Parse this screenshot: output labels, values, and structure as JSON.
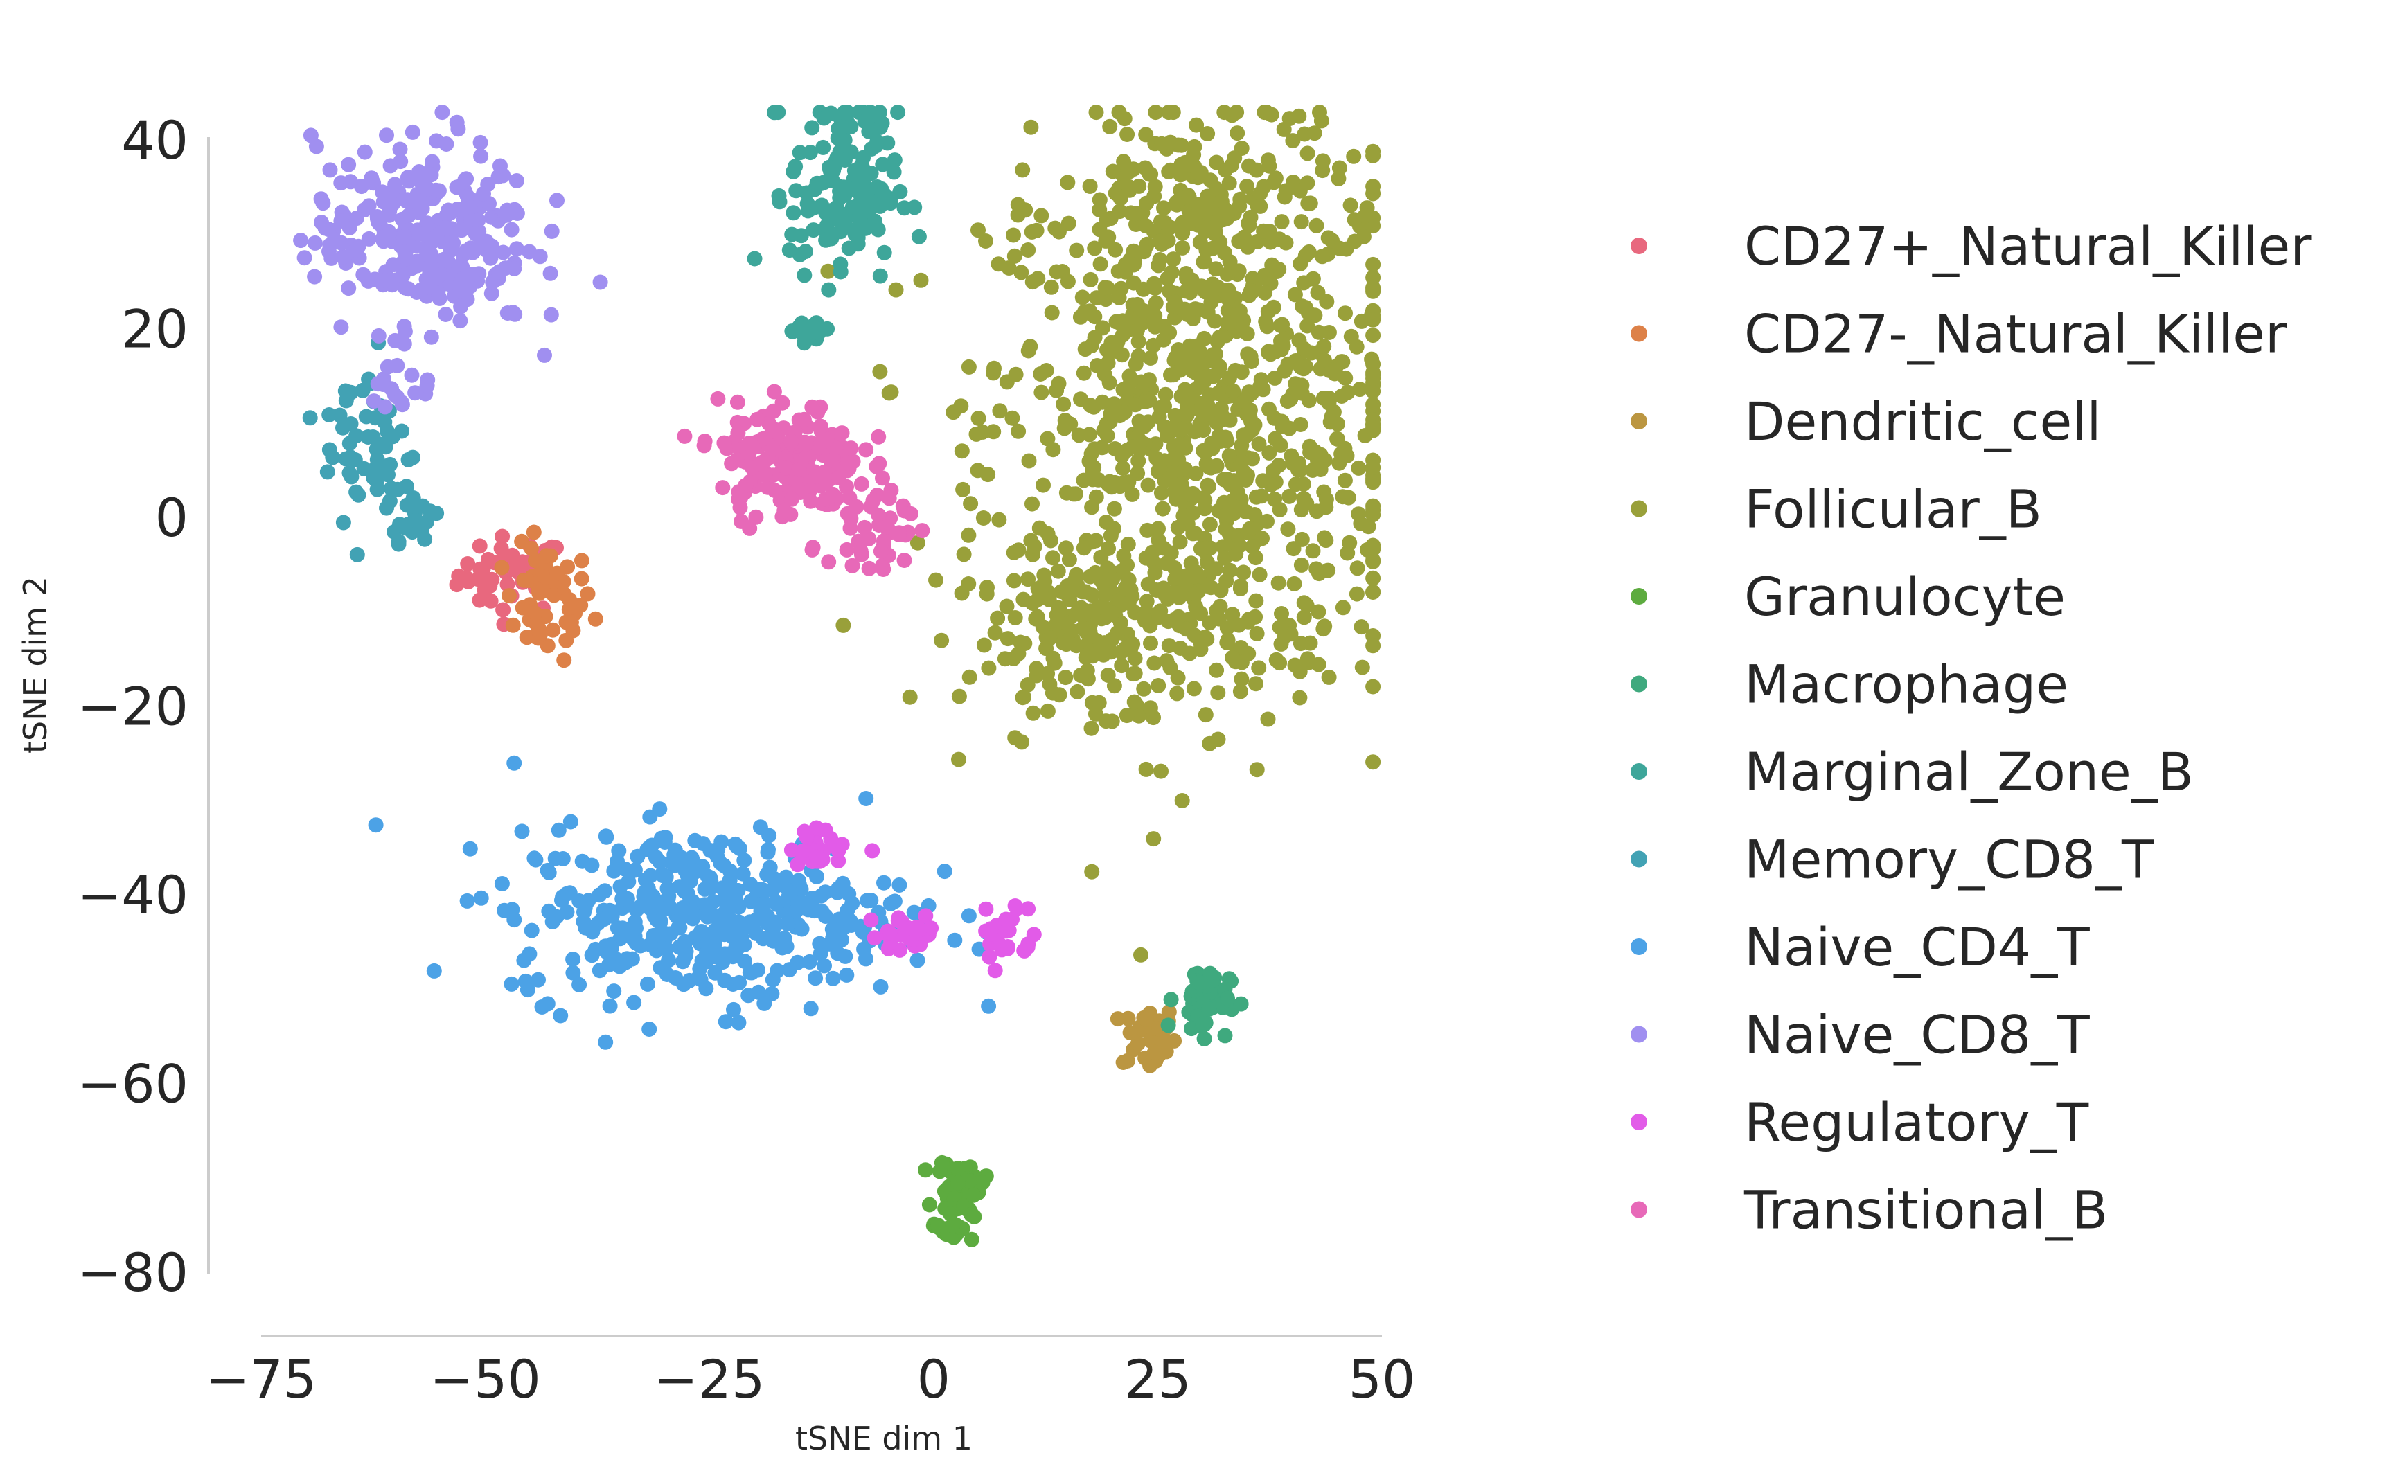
{
  "chart_data": {
    "type": "scatter",
    "title": "",
    "xlabel": "tSNE dim 1",
    "ylabel": "tSNE dim 2",
    "xlim": [
      -75,
      50
    ],
    "ylim": [
      -80,
      40
    ],
    "xticks": [
      -75,
      -50,
      -25,
      0,
      25,
      50
    ],
    "yticks": [
      40,
      20,
      0,
      -20,
      -40,
      -60,
      -80
    ],
    "xtick_labels": [
      "−75",
      "−50",
      "−25",
      "0",
      "25",
      "50"
    ],
    "ytick_labels": [
      "40",
      "20",
      "0",
      "−20",
      "−40",
      "−60",
      "−80"
    ],
    "grid": false,
    "legend_position": "right",
    "series": [
      {
        "name": "CD27+_Natural_Killer",
        "color": "#e8687e",
        "clusters": [
          {
            "cx": -47,
            "cy": -6,
            "sx": 3,
            "sy": 2,
            "n": 45
          }
        ]
      },
      {
        "name": "CD27-_Natural_Killer",
        "color": "#dd8148",
        "clusters": [
          {
            "cx": -43,
            "cy": -9,
            "sx": 2.5,
            "sy": 3,
            "n": 55
          }
        ]
      },
      {
        "name": "Dendritic_cell",
        "color": "#bb9641",
        "clusters": [
          {
            "cx": 24,
            "cy": -55,
            "sx": 1.5,
            "sy": 1.8,
            "n": 40
          }
        ]
      },
      {
        "name": "Follicular_B",
        "color": "#99a03a",
        "clusters": [
          {
            "cx": 30,
            "cy": 10,
            "sx": 12,
            "sy": 14,
            "n": 900
          },
          {
            "cx": 20,
            "cy": -12,
            "sx": 8,
            "sy": 4,
            "n": 200
          },
          {
            "cx": 30,
            "cy": 33,
            "sx": 8,
            "sy": 5,
            "n": 150
          }
        ]
      },
      {
        "name": "Granulocyte",
        "color": "#5dab3f",
        "clusters": [
          {
            "cx": 3,
            "cy": -71,
            "sx": 1.3,
            "sy": 1.5,
            "n": 45
          },
          {
            "cx": 2,
            "cy": -75,
            "sx": 1.2,
            "sy": 0.8,
            "n": 20
          }
        ]
      },
      {
        "name": "Macrophage",
        "color": "#3fa97e",
        "clusters": [
          {
            "cx": 30,
            "cy": -51,
            "sx": 1.5,
            "sy": 1.8,
            "n": 50
          }
        ]
      },
      {
        "name": "Marginal_Zone_B",
        "color": "#3ea69a",
        "clusters": [
          {
            "cx": -10,
            "cy": 35,
            "sx": 3,
            "sy": 5,
            "n": 150
          },
          {
            "cx": -14,
            "cy": 20,
            "sx": 1.2,
            "sy": 0.6,
            "n": 15
          }
        ]
      },
      {
        "name": "Memory_CD8_T",
        "color": "#42a2b4",
        "clusters": [
          {
            "cx": -63,
            "cy": 8,
            "sx": 2.5,
            "sy": 5,
            "n": 60
          },
          {
            "cx": -58,
            "cy": 0,
            "sx": 1.5,
            "sy": 2,
            "n": 20
          }
        ]
      },
      {
        "name": "Naive_CD4_T",
        "color": "#4ca2e6",
        "clusters": [
          {
            "cx": -25,
            "cy": -42,
            "sx": 11,
            "sy": 4.5,
            "n": 420
          }
        ]
      },
      {
        "name": "Naive_CD8_T",
        "color": "#a08ff0",
        "clusters": [
          {
            "cx": -57,
            "cy": 30,
            "sx": 6,
            "sy": 5,
            "n": 280
          },
          {
            "cx": -60,
            "cy": 14,
            "sx": 2,
            "sy": 1.5,
            "n": 15
          }
        ]
      },
      {
        "name": "Regulatory_T",
        "color": "#e25be8",
        "clusters": [
          {
            "cx": -12,
            "cy": -35,
            "sx": 2,
            "sy": 1,
            "n": 25
          },
          {
            "cx": -3,
            "cy": -44,
            "sx": 2,
            "sy": 1,
            "n": 30
          },
          {
            "cx": 8,
            "cy": -44,
            "sx": 1.5,
            "sy": 2,
            "n": 25
          }
        ]
      },
      {
        "name": "Transitional_B",
        "color": "#e769b8",
        "clusters": [
          {
            "cx": -16,
            "cy": 6,
            "sx": 4,
            "sy": 3,
            "n": 180
          },
          {
            "cx": -6,
            "cy": -2,
            "sx": 2,
            "sy": 3,
            "n": 40
          }
        ]
      }
    ]
  }
}
